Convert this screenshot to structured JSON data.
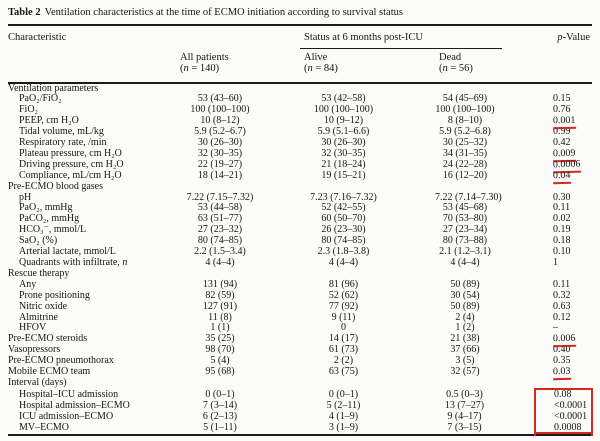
{
  "title": {
    "label": "Table 2",
    "caption": "Ventilation characteristics at the time of ECMO initiation according to survival status"
  },
  "header": {
    "characteristic": "Characteristic",
    "group": "Status at 6 months post-ICU",
    "p_value": "p-Value",
    "columns": [
      {
        "name": "All patients",
        "count": "(n = 140)"
      },
      {
        "name": "Alive",
        "count": "(n = 84)"
      },
      {
        "name": "Dead",
        "count": "(n = 56)"
      }
    ]
  },
  "colors": {
    "annotation_red": "#cf2b20",
    "rule": "#1b1b1b",
    "text": "#161616",
    "background": "#fbfbf9"
  },
  "table": {
    "rows": [
      {
        "label": "Ventilation parameters"
      },
      {
        "label": "PaO₂/FiO₂",
        "indent": true,
        "all": "53 (43–60)",
        "alive": "53 (42–58)",
        "dead": "54 (45–69)",
        "p": "0.15"
      },
      {
        "label": "FiO₂",
        "indent": true,
        "all": "100 (100–100)",
        "alive": "100 (100–100)",
        "dead": "100 (100–100)",
        "p": "0.76"
      },
      {
        "label": "PEEP, cm H₂O",
        "indent": true,
        "all": "10 (8–12)",
        "alive": "10 (9–12)",
        "dead": "8 (8–10)",
        "p": "0.001",
        "mark": "underline"
      },
      {
        "label": "Tidal volume, mL/kg",
        "indent": true,
        "all": "5.9 (5.2–6.7)",
        "alive": "5.9 (5.1–6.6)",
        "dead": "5.9 (5.2–6.8)",
        "p": "0.99"
      },
      {
        "label": "Respiratory rate, /min",
        "indent": true,
        "all": "30 (26–30)",
        "alive": "30 (26–30)",
        "dead": "30 (25–32)",
        "p": "0.42"
      },
      {
        "label": "Plateau pressure, cm H₂O",
        "indent": true,
        "all": "32 (30–35)",
        "alive": "32 (30–35)",
        "dead": "34 (31–35)",
        "p": "0.009",
        "mark": "underline"
      },
      {
        "label": "Driving pressure, cm H₂O",
        "indent": true,
        "all": "22 (19–27)",
        "alive": "21 (18–24)",
        "dead": "24 (22–28)",
        "p": "0.0006",
        "mark": "underline"
      },
      {
        "label": "Compliance, mL/cm H₂O",
        "indent": true,
        "all": "18 (14–21)",
        "alive": "19 (15–21)",
        "dead": "16 (12–20)",
        "p": "0.04",
        "mark": "underline"
      },
      {
        "label": "Pre-ECMO blood gases"
      },
      {
        "label": "pH",
        "indent": true,
        "all": "7.22 (7.15–7.32)",
        "alive": "7.23 (7.16–7.32)",
        "dead": "7.22 (7.14–7.30)",
        "p": "0.30"
      },
      {
        "label": "PaO₂, mmHg",
        "indent": true,
        "all": "53 (44–58)",
        "alive": "52 (42–55)",
        "dead": "53 (45–68)",
        "p": "0.11"
      },
      {
        "label": "PaCO₂, mmHg",
        "indent": true,
        "all": "63 (51–77)",
        "alive": "60 (50–70)",
        "dead": "70 (53–80)",
        "p": "0.02"
      },
      {
        "label": "HCO₃⁻, mmol/L",
        "indent": true,
        "all": "27 (23–32)",
        "alive": "26 (23–30)",
        "dead": "27 (23–34)",
        "p": "0.19"
      },
      {
        "label": "SaO₂ (%)",
        "indent": true,
        "all": "80 (74–85)",
        "alive": "80 (74–85)",
        "dead": "80 (73–88)",
        "p": "0.18"
      },
      {
        "label": "Arterial lactate, mmol/L",
        "indent": true,
        "all": "2.2 (1.5–3.4)",
        "alive": "2.3 (1.8–3.8)",
        "dead": "2.1 (1.2–3.1)",
        "p": "0.10"
      },
      {
        "label": "Quadrants with infiltrate, n",
        "italicize": "n",
        "indent": true,
        "all": "4 (4–4)",
        "alive": "4 (4–4)",
        "dead": "4 (4–4)",
        "p": "1"
      },
      {
        "label": "Rescue therapy"
      },
      {
        "label": "Any",
        "indent": true,
        "all": "131 (94)",
        "alive": "81 (96)",
        "dead": "50 (89)",
        "p": "0.11"
      },
      {
        "label": "Prone positioning",
        "indent": true,
        "all": "82 (59)",
        "alive": "52 (62)",
        "dead": "30 (54)",
        "p": "0.32"
      },
      {
        "label": "Nitric oxide",
        "indent": true,
        "all": "127 (91)",
        "alive": "77 (92)",
        "dead": "50 (89)",
        "p": "0.63"
      },
      {
        "label": "Almitrine",
        "indent": true,
        "all": "11 (8)",
        "alive": "9 (11)",
        "dead": "2 (4)",
        "p": "0.12"
      },
      {
        "label": "HFOV",
        "indent": true,
        "all": "1 (1)",
        "alive": "0",
        "dead": "1 (2)",
        "p": "–"
      },
      {
        "label": "Pre-ECMO steroids",
        "all": "35 (25)",
        "alive": "14 (17)",
        "dead": "21 (38)",
        "p": "0.006",
        "mark": "underline"
      },
      {
        "label": "Vasopressors",
        "all": "98 (70)",
        "alive": "61 (73)",
        "dead": "37 (66)",
        "p": "0.40"
      },
      {
        "label": "Pre-ECMO pneumothorax",
        "all": "5 (4)",
        "alive": "2 (2)",
        "dead": "3 (5)",
        "p": "0.35"
      },
      {
        "label": "Mobile ECMO team",
        "all": "95 (68)",
        "alive": "63 (75)",
        "dead": "32 (57)",
        "p": "0.03",
        "mark": "underline"
      },
      {
        "label": "Interval (days)"
      },
      {
        "label": "Hospital–ICU admission",
        "indent": true,
        "all": "0 (0–1)",
        "alive": "0 (0–1)",
        "dead": "0.5 (0–3)",
        "p": "0.08",
        "mark": "box-top"
      },
      {
        "label": "Hospital admission–ECMO",
        "indent": true,
        "all": "7 (3–14)",
        "alive": "5 (2–11)",
        "dead": "13 (7–27)",
        "p": "<0.0001",
        "mark": "box"
      },
      {
        "label": "ICU admission–ECMO",
        "indent": true,
        "all": "6 (2–13)",
        "alive": "4 (1–9)",
        "dead": "9 (4–17)",
        "p": "<0.0001",
        "mark": "box"
      },
      {
        "label": "MV–ECMO",
        "indent": true,
        "all": "5 (1–11)",
        "alive": "3 (1–9)",
        "dead": "7 (3–15)",
        "p": "0.0008",
        "mark": "box-bottom"
      }
    ]
  }
}
